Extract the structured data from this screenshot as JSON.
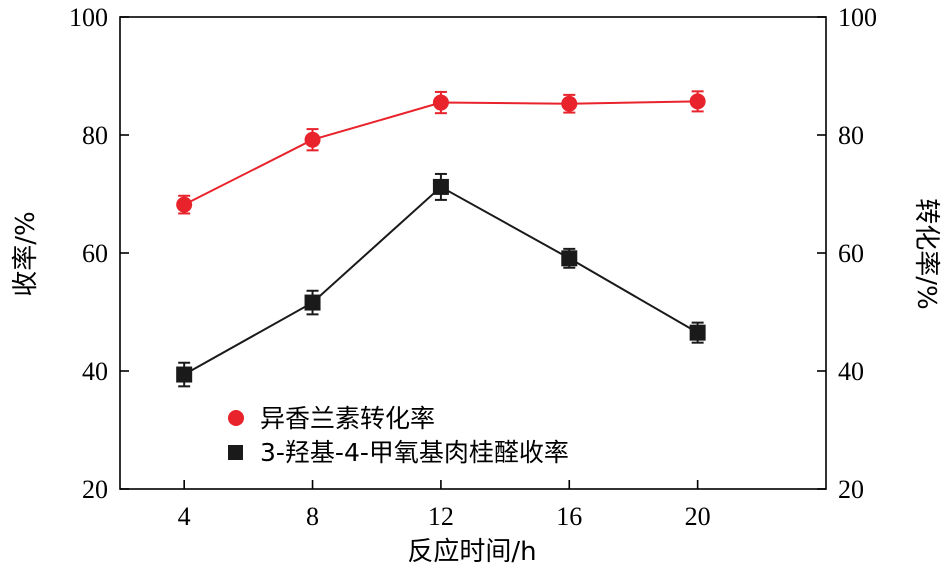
{
  "chart_data": {
    "type": "line",
    "x": [
      4,
      8,
      12,
      16,
      20
    ],
    "xlim": [
      2,
      24
    ],
    "xticks": [
      4,
      8,
      12,
      16,
      20
    ],
    "xlabel": "反应时间/h",
    "ylabel_left": "收率/%",
    "ylabel_right": "转化率/%",
    "ylim": [
      20,
      100
    ],
    "yticks": [
      20,
      40,
      60,
      80,
      100
    ],
    "grid": false,
    "legend_position": "lower-left",
    "series": [
      {
        "name": "异香兰素转化率",
        "marker": "circle",
        "color": "#e8232b",
        "axis": "right",
        "values": [
          68.2,
          79.2,
          85.5,
          85.3,
          85.7
        ],
        "errors": [
          1.5,
          1.8,
          1.8,
          1.5,
          1.7
        ]
      },
      {
        "name": "3-羟基-4-甲氧基肉桂醛收率",
        "marker": "square",
        "color": "#1a1a1a",
        "axis": "left",
        "values": [
          39.4,
          51.6,
          71.2,
          59.1,
          46.5
        ],
        "errors": [
          2.0,
          2.0,
          2.2,
          1.6,
          1.7
        ]
      }
    ]
  }
}
